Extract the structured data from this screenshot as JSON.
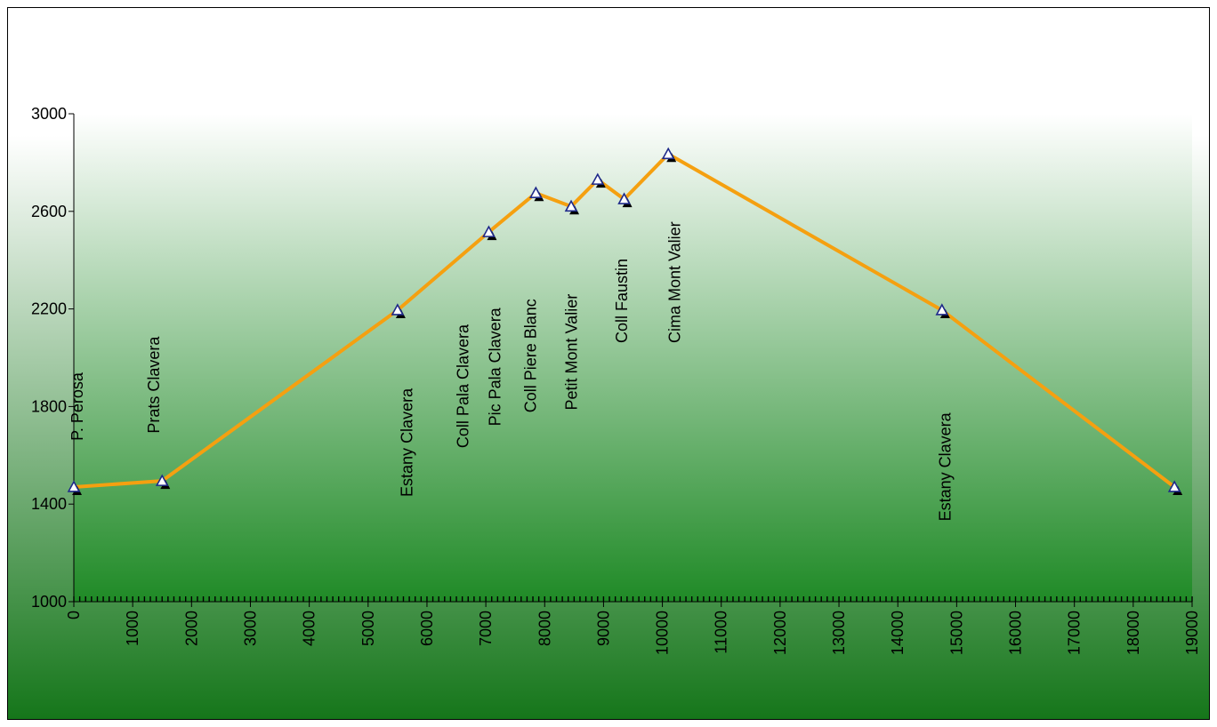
{
  "chart_data": {
    "type": "line",
    "title": "",
    "xlabel": "",
    "ylabel": "",
    "xlim": [
      0,
      19000
    ],
    "ylim": [
      1000,
      3000
    ],
    "x_ticks": [
      0,
      1000,
      2000,
      3000,
      4000,
      5000,
      6000,
      7000,
      8000,
      9000,
      10000,
      11000,
      12000,
      13000,
      14000,
      15000,
      16000,
      17000,
      18000,
      19000
    ],
    "y_ticks": [
      1000,
      1400,
      1800,
      2200,
      2600,
      3000
    ],
    "grid": false,
    "line_color": "#f5a010",
    "background_gradient": [
      "#ffffff",
      "#15761a"
    ],
    "series": [
      {
        "points": [
          {
            "x": 0,
            "y": 1470
          },
          {
            "x": 1500,
            "y": 1495
          },
          {
            "x": 5500,
            "y": 2195
          },
          {
            "x": 7050,
            "y": 2515
          },
          {
            "x": 7850,
            "y": 2675
          },
          {
            "x": 8450,
            "y": 2620
          },
          {
            "x": 8900,
            "y": 2730
          },
          {
            "x": 9350,
            "y": 2650
          },
          {
            "x": 10100,
            "y": 2835
          },
          {
            "x": 14750,
            "y": 2195
          },
          {
            "x": 18700,
            "y": 1470
          }
        ]
      }
    ],
    "annotations": [
      {
        "text": "P. Perosa",
        "x": 150,
        "y": 1660
      },
      {
        "text": "Prats Clavera",
        "x": 1450,
        "y": 1690
      },
      {
        "text": "Estany Clavera",
        "x": 5750,
        "y": 1430
      },
      {
        "text": "Coll Pala Clavera",
        "x": 6700,
        "y": 1630
      },
      {
        "text": "Pic Pala Clavera",
        "x": 7250,
        "y": 1720
      },
      {
        "text": "Coll Piere Blanc",
        "x": 7850,
        "y": 1775
      },
      {
        "text": "Petit Mont Valier",
        "x": 8550,
        "y": 1785
      },
      {
        "text": "Coll Faustin",
        "x": 9400,
        "y": 2060
      },
      {
        "text": "Cima Mont Valier",
        "x": 10300,
        "y": 2060
      },
      {
        "text": "Estany Clavera",
        "x": 14900,
        "y": 1330
      }
    ]
  }
}
